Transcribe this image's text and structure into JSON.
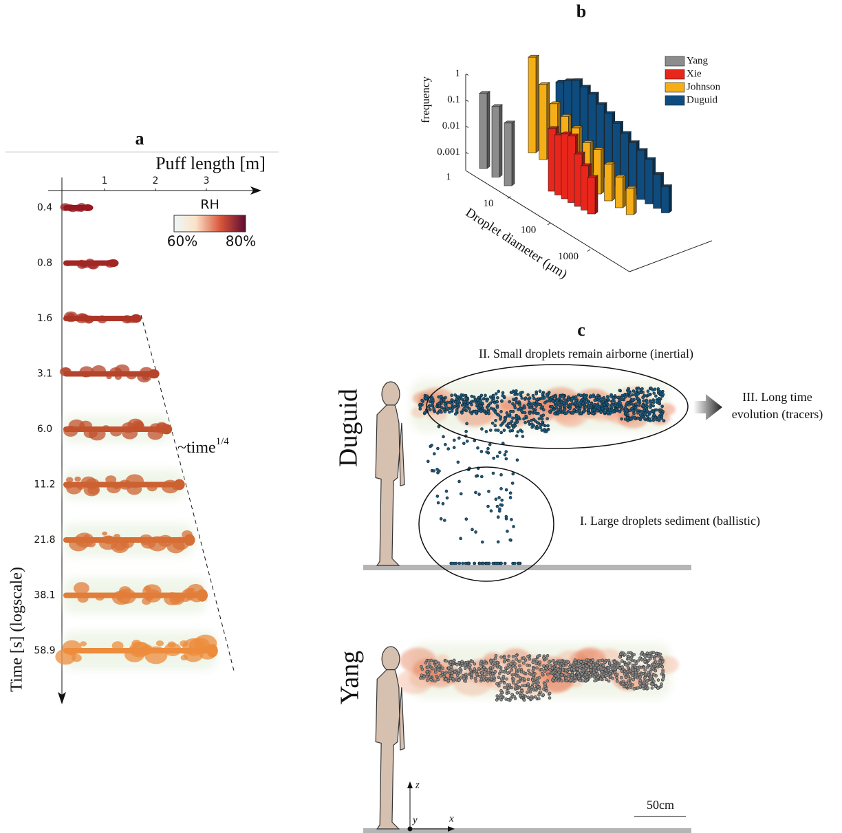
{
  "panel_a": {
    "label": "a",
    "x_axis_label": "Puff length [m]",
    "xticks": [
      1,
      2,
      3
    ],
    "y_axis_label": "Time [s] (logscale)",
    "times": [
      "0.4",
      "0.8",
      "1.6",
      "3.1",
      "6.0",
      "11.2",
      "21.8",
      "38.1",
      "58.9"
    ],
    "puff_lengths": [
      0.75,
      1.25,
      1.7,
      2.05,
      2.3,
      2.55,
      2.75,
      3.0,
      3.2
    ],
    "colorbar": {
      "title": "RH",
      "labels": [
        "60%",
        "80%"
      ]
    },
    "scaling_label": "~time",
    "scaling_exponent": "1/4"
  },
  "chart_data": {
    "type": "bar3d",
    "label": "b",
    "zlabel": "frequency",
    "xlabel": "Droplet diameter (μm)",
    "log_scale": true,
    "zlim": [
      0.0002,
      1
    ],
    "zticks": [
      1,
      0.1,
      0.01,
      0.001
    ],
    "xticks": [
      1,
      10,
      100,
      1000
    ],
    "series": [
      {
        "name": "Yang",
        "color": "#8c8c8c",
        "values": [
          0.15,
          0.1,
          0.05
        ]
      },
      {
        "name": "Xie",
        "color": "#e8261b",
        "values": [
          0.05,
          0.04,
          0.06,
          0.07,
          0.02,
          0.01,
          0.005
        ]
      },
      {
        "name": "Johnson",
        "color": "#f6ae17",
        "values": [
          0.9,
          0.15,
          0.05,
          0.03,
          0.02,
          0.01,
          0.01,
          0.005,
          0.003,
          0.002
        ]
      },
      {
        "name": "Duguid",
        "color": "#0e4c7f",
        "values": [
          0.12,
          0.2,
          0.3,
          0.25,
          0.2,
          0.12,
          0.08,
          0.05,
          0.03,
          0.02,
          0.015,
          0.01,
          0.004,
          0.002
        ]
      }
    ]
  },
  "panel_c": {
    "label": "c",
    "airborne_label": "II. Small droplets remain airborne (inertial)",
    "tracer_label": [
      "III. Long time",
      "evolution (tracers)"
    ],
    "sediment_label": "I. Large droplets sediment (ballistic)",
    "top_model": "Duguid",
    "bottom_model": "Yang",
    "axes": {
      "z": "z",
      "x": "x",
      "y": "y"
    },
    "scale_bar": "50cm"
  }
}
